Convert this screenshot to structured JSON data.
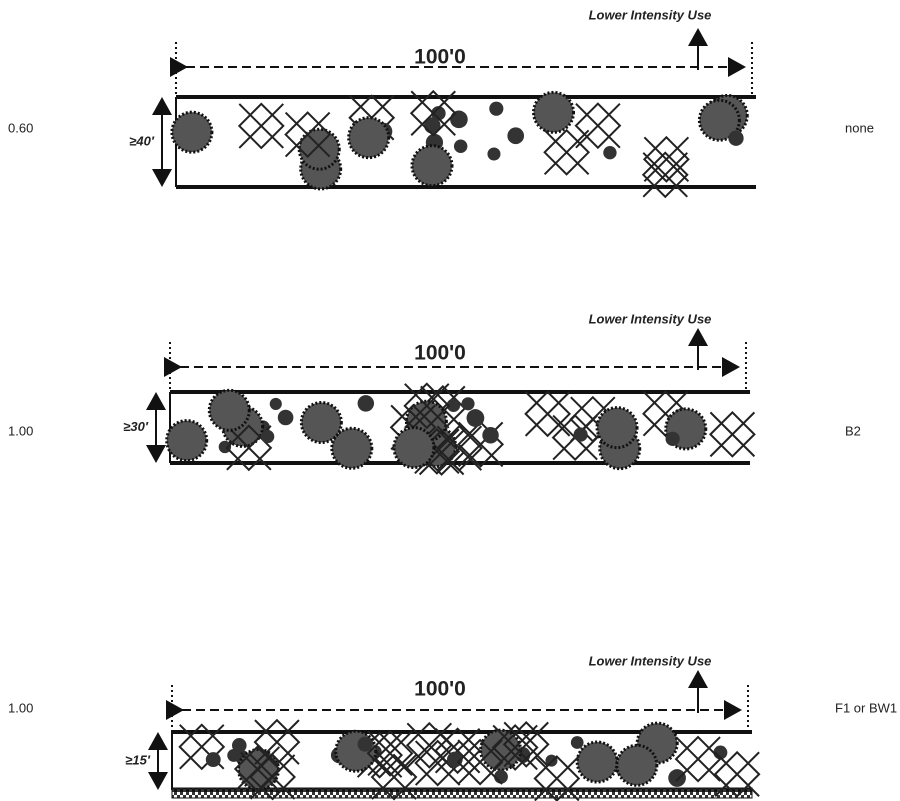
{
  "panels": [
    {
      "ratio": "0.60",
      "use_label": "Lower Intensity Use",
      "length": "100'0",
      "depth": "≥40′",
      "type": "none"
    },
    {
      "ratio": "1.00",
      "use_label": "Lower Intensity Use",
      "length": "100'0",
      "depth": "≥30′",
      "type": "B2"
    },
    {
      "ratio": "1.00",
      "use_label": "Lower Intensity Use",
      "length": "100'0",
      "depth": "≥15′",
      "type": "F1 or BW1"
    }
  ]
}
